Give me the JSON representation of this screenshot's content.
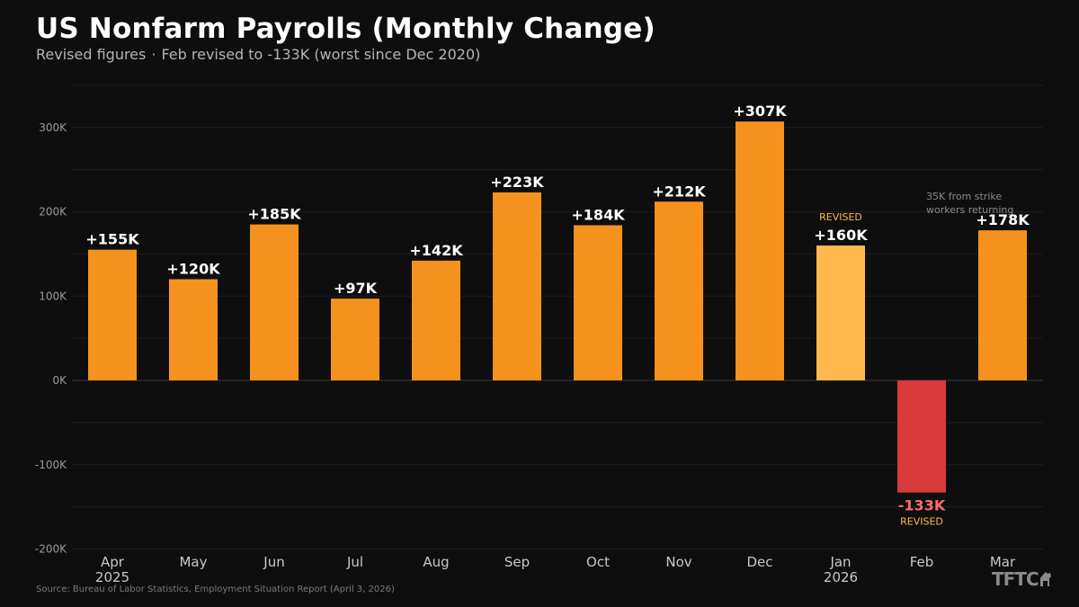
{
  "header": {
    "title": "US Nonfarm Payrolls (Monthly Change)",
    "subtitle_left": "Revised figures",
    "subtitle_sep": "·",
    "subtitle_right": "Feb revised to -133K (worst since Dec 2020)"
  },
  "footer": {
    "source": "Source: Bureau of Labor Statistics, Employment Situation Report (April 3, 2026)",
    "logo": "TFTC"
  },
  "colors": {
    "background": "#0e0e0e",
    "bar": "#f5921e",
    "bar_revised": "#ffb84d",
    "bar_negative": "#d93a3a",
    "negative_label": "#ff6b6b",
    "revised_tag": "#ffb84d",
    "grid": "#1e1e1e",
    "zero_line": "#3a3a3a",
    "tick": "#9a9a9a",
    "annotation": "#8a8a8a"
  },
  "chart_data": {
    "type": "bar",
    "title": "US Nonfarm Payrolls (Monthly Change)",
    "ylabel": "",
    "xlabel": "",
    "ylim": [
      -200,
      350
    ],
    "yticks": [
      -200,
      -100,
      0,
      100,
      200,
      300
    ],
    "ytick_labels": [
      "-200K",
      "-100K",
      "0K",
      "100K",
      "200K",
      "300K"
    ],
    "grid": true,
    "categories": [
      "Apr",
      "May",
      "Jun",
      "Jul",
      "Aug",
      "Sep",
      "Oct",
      "Nov",
      "Dec",
      "Jan",
      "Feb",
      "Mar"
    ],
    "category_years": [
      "2025",
      "",
      "",
      "",
      "",
      "",
      "",
      "",
      "",
      "2026",
      "",
      ""
    ],
    "values": [
      155,
      120,
      185,
      97,
      142,
      223,
      184,
      212,
      307,
      160,
      -133,
      178
    ],
    "data_labels": [
      "+155K",
      "+120K",
      "+185K",
      "+97K",
      "+142K",
      "+223K",
      "+184K",
      "+212K",
      "+307K",
      "+160K",
      "-133K",
      "+178K"
    ],
    "revised": [
      false,
      false,
      false,
      false,
      false,
      false,
      false,
      false,
      false,
      true,
      true,
      false
    ],
    "revised_tag": "REVISED",
    "annotations": [
      {
        "category": "Mar",
        "lines": [
          "35K from strike",
          "workers returning"
        ]
      }
    ]
  }
}
